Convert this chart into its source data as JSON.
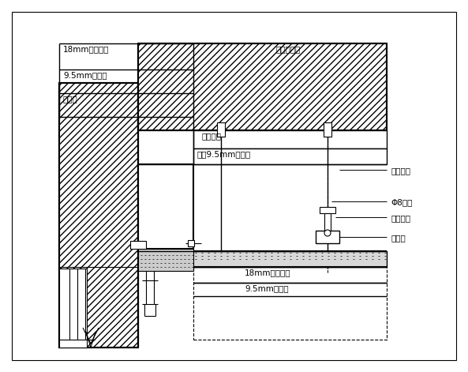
{
  "bg": "#ffffff",
  "lc": "#000000",
  "figsize": [
    5.93,
    4.71
  ],
  "dpi": 100,
  "t_l1": "18mm外木工板",
  "t_l2": "9.5mm石膏板",
  "t_l3": "木龙骨",
  "t_r1": "建筑结构层",
  "t_r2": "轻钉龙骨",
  "t_r3": "双卸9.5mm石膏板",
  "t_r4": "专用吸笻",
  "t_r5": "Φ8吸笻",
  "t_r6": "龙骨吸件",
  "t_r7": "主龙骨",
  "t_b1": "18mm外木工板",
  "t_b2": "9.5mm石膏板"
}
